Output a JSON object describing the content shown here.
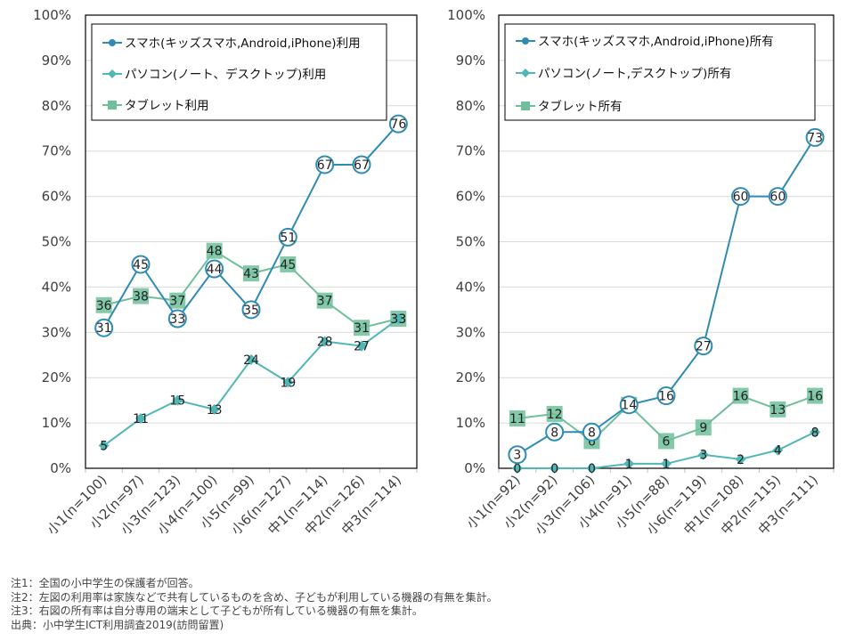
{
  "colors": {
    "smartphone": "#2e8bb3",
    "pc": "#4fb8b6",
    "tablet": "#6fbf9b",
    "grid": "#d9d9d9",
    "axis": "#bfbfbf",
    "frame": "#000000"
  },
  "icons": {
    "smartphone": "circle-marker-icon",
    "pc": "diamond-marker-icon",
    "tablet": "square-marker-icon"
  },
  "chart_data": [
    {
      "type": "line",
      "yaxis_ticks": [
        "0%",
        "10%",
        "20%",
        "30%",
        "40%",
        "50%",
        "60%",
        "70%",
        "80%",
        "90%",
        "100%"
      ],
      "ylim": [
        0,
        100
      ],
      "grid": true,
      "legend_position": "top-left",
      "categories": [
        "小1(n=100)",
        "小2(n=97)",
        "小3(n=123)",
        "小4(n=100)",
        "小5(n=99)",
        "小6(n=127)",
        "中1(n=114)",
        "中2(n=126)",
        "中3(n=114)"
      ],
      "series": [
        {
          "name": "スマホ(キッズスマホ,Android,iPhone)利用",
          "key": "smartphone",
          "marker": "circle",
          "values": [
            31,
            45,
            33,
            44,
            35,
            51,
            67,
            67,
            76
          ]
        },
        {
          "name": "パソコン(ノート、デスクトップ)利用",
          "key": "pc",
          "marker": "diamond",
          "values": [
            5,
            11,
            15,
            13,
            24,
            19,
            28,
            27,
            33
          ]
        },
        {
          "name": "タブレット利用",
          "key": "tablet",
          "marker": "square",
          "values": [
            36,
            38,
            37,
            48,
            43,
            45,
            37,
            31,
            33
          ]
        }
      ]
    },
    {
      "type": "line",
      "yaxis_ticks": [
        "0%",
        "10%",
        "20%",
        "30%",
        "40%",
        "50%",
        "60%",
        "70%",
        "80%",
        "90%",
        "100%"
      ],
      "ylim": [
        0,
        100
      ],
      "grid": true,
      "legend_position": "top-left",
      "categories": [
        "小1(n=92)",
        "小2(n=92)",
        "小3(n=106)",
        "小4(n=91)",
        "小5(n=88)",
        "小6(n=119)",
        "中1(n=108)",
        "中2(n=115)",
        "中3(n=111)"
      ],
      "series": [
        {
          "name": "スマホ(キッズスマホ,Android,iPhone)所有",
          "key": "smartphone",
          "marker": "circle",
          "values": [
            3,
            8,
            8,
            14,
            16,
            27,
            60,
            60,
            73
          ]
        },
        {
          "name": "パソコン(ノート,デスクトップ)所有",
          "key": "pc",
          "marker": "diamond",
          "values": [
            0,
            0,
            0,
            1,
            1,
            3,
            2,
            4,
            8
          ]
        },
        {
          "name": "タブレット所有",
          "key": "tablet",
          "marker": "square",
          "values": [
            11,
            12,
            6,
            14,
            6,
            9,
            16,
            13,
            16
          ]
        }
      ]
    }
  ],
  "notes": [
    "注1：全国の小中学生の保護者が回答。",
    "注2：左図の利用率は家族などで共有しているものを含め、子どもが利用している機器の有無を集計。",
    "注3：右図の所有率は自分専用の端末として子どもが所有している機器の有無を集計。",
    "出典：小中学生ICT利用調査2019(訪問留置)"
  ]
}
